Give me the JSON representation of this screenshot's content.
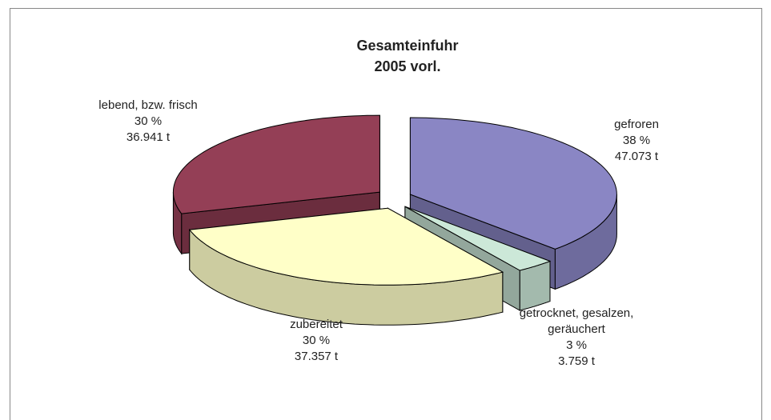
{
  "chart_data": {
    "type": "pie3d",
    "title": "Gesamteinfuhr 2005 vorl.",
    "categories": [
      "gefroren",
      "getrocknet, gesalzen, geräuchert",
      "zubereitet",
      "lebend, bzw. frisch"
    ],
    "values": [
      47073,
      3759,
      37357,
      36941
    ],
    "value_labels": [
      "47.073 t",
      "3.759 t",
      "37.357 t",
      "36.941 t"
    ],
    "percents": [
      38,
      3,
      30,
      30
    ],
    "percent_labels": [
      "38 %",
      "3 %",
      "30 %",
      "30 %"
    ],
    "colors": [
      "#8a86c4",
      "#cce8d8",
      "#ffffc8",
      "#943f56"
    ]
  }
}
